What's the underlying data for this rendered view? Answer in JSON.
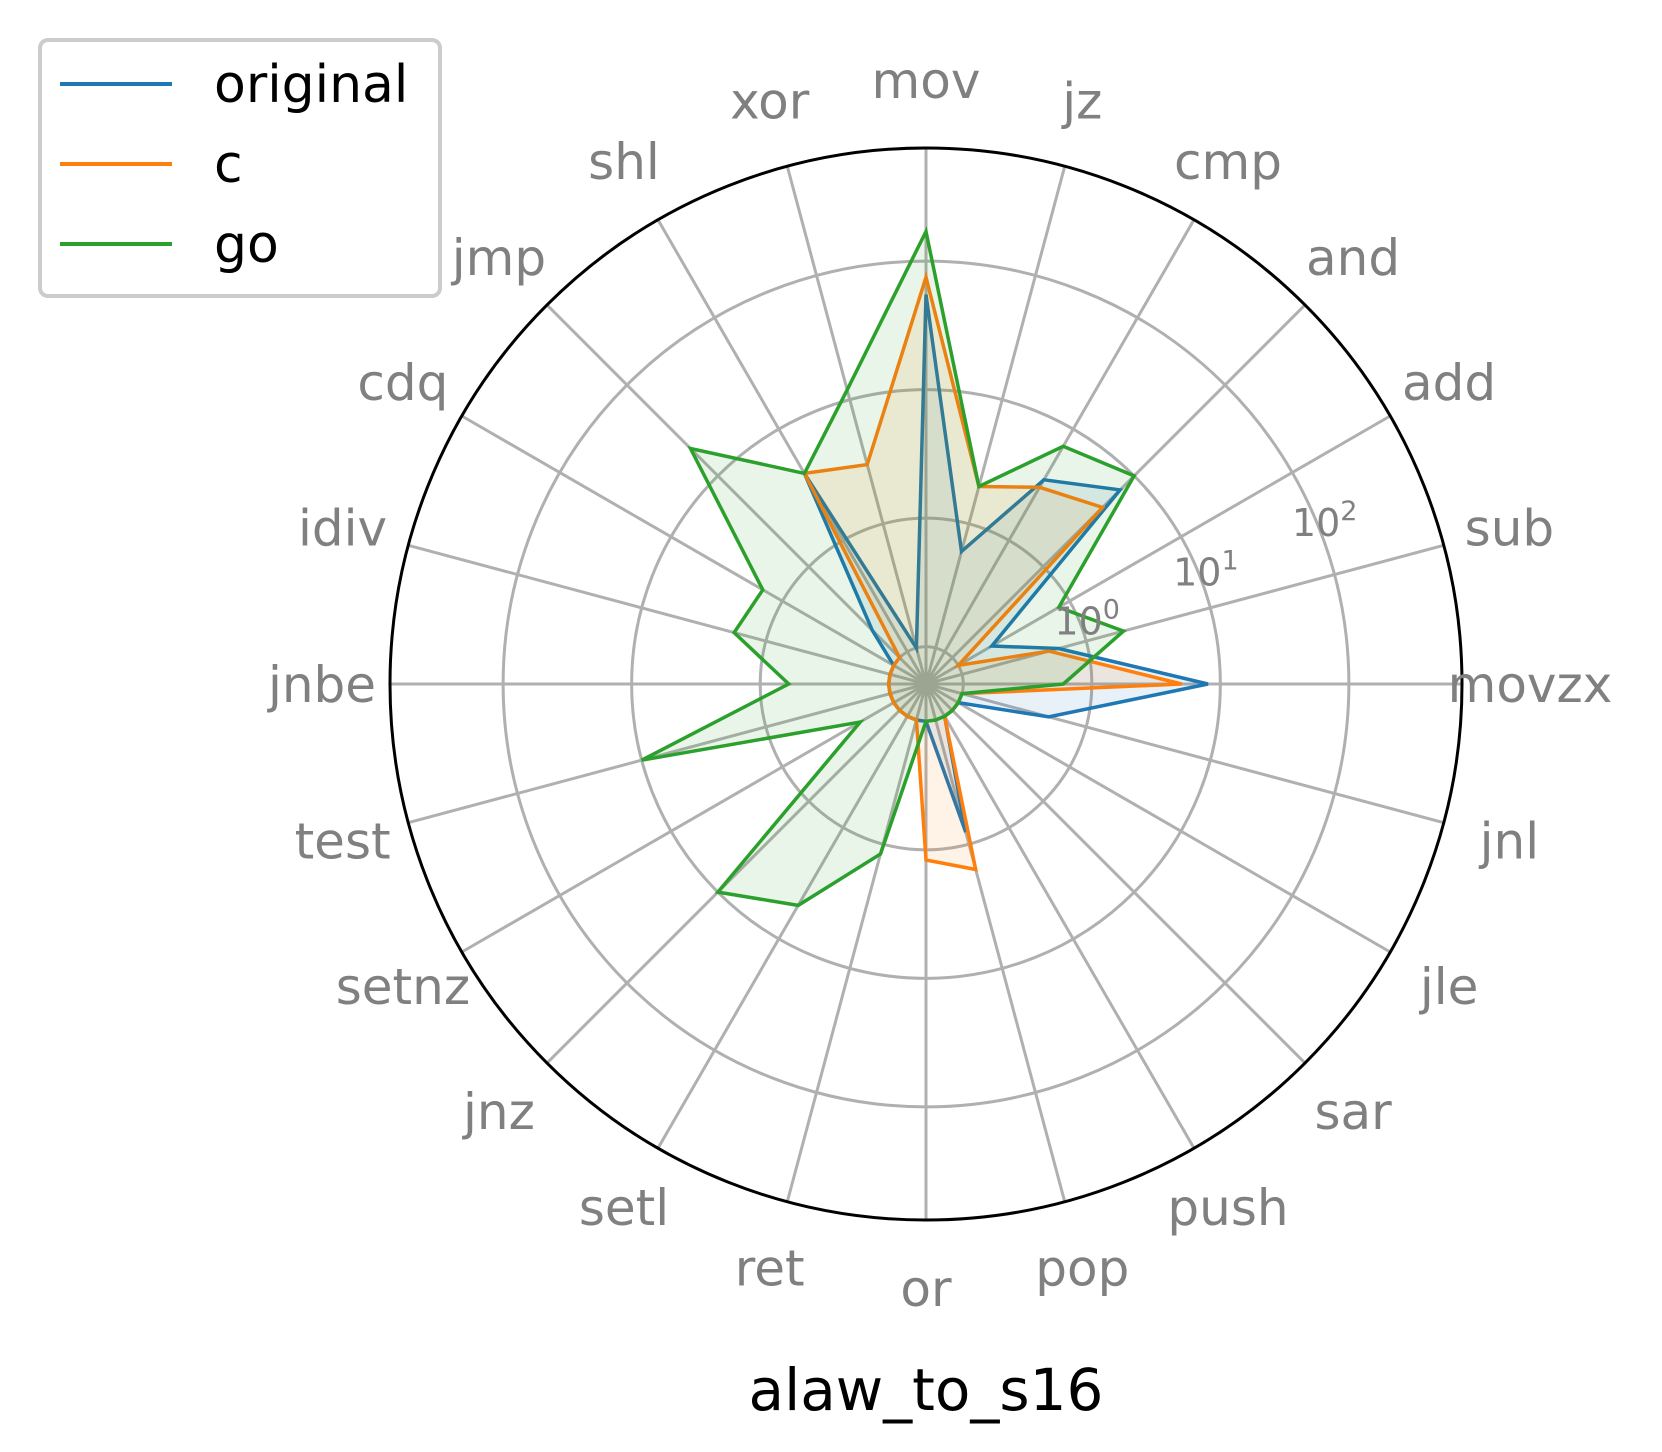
{
  "chart_data": {
    "type": "radar",
    "title": "alaw_to_s16",
    "radial_scale": "log",
    "radial_ticks": [
      {
        "base": "10",
        "exp": "0"
      },
      {
        "base": "10",
        "exp": "1"
      },
      {
        "base": "10",
        "exp": "2"
      }
    ],
    "radial_tick_values": [
      1,
      10,
      100
    ],
    "grid": true,
    "legend_position": "top-left",
    "categories": [
      "movzx",
      "sub",
      "add",
      "and",
      "cmp",
      "jz",
      "mov",
      "xor",
      "shl",
      "jmp",
      "cdq",
      "idiv",
      "jnbe",
      "test",
      "setnz",
      "jnz",
      "setl",
      "ret",
      "or",
      "pop",
      "push",
      "sar",
      "jle",
      "jnl"
    ],
    "series": [
      {
        "name": "original",
        "color": "#1f77b4",
        "values": [
          8,
          0.6,
          0.2,
          7,
          3.5,
          0.6,
          55,
          0.1,
          4,
          0.2,
          0.1,
          0.1,
          0.1,
          0.1,
          0.1,
          0.1,
          0.1,
          0.1,
          0.1,
          0.8,
          0.1,
          0.1,
          0.1,
          0.5
        ]
      },
      {
        "name": "c",
        "color": "#ff7f0e",
        "values": [
          5,
          0.5,
          0.1,
          4.5,
          3,
          2,
          75,
          3,
          4,
          0.1,
          0.1,
          0.1,
          0.1,
          0.1,
          0.1,
          0.1,
          0.1,
          0.1,
          1.2,
          1.6,
          0.1,
          0.1,
          0.1,
          0.1
        ]
      },
      {
        "name": "go",
        "color": "#2ca02c",
        "values": [
          0.6,
          2,
          0.8,
          10,
          7,
          2,
          170,
          12,
          4,
          20,
          1.5,
          1.8,
          0.6,
          10,
          0.2,
          10,
          5,
          1.2,
          0.1,
          0.1,
          0.1,
          0.1,
          0.1,
          0.1
        ]
      }
    ]
  }
}
